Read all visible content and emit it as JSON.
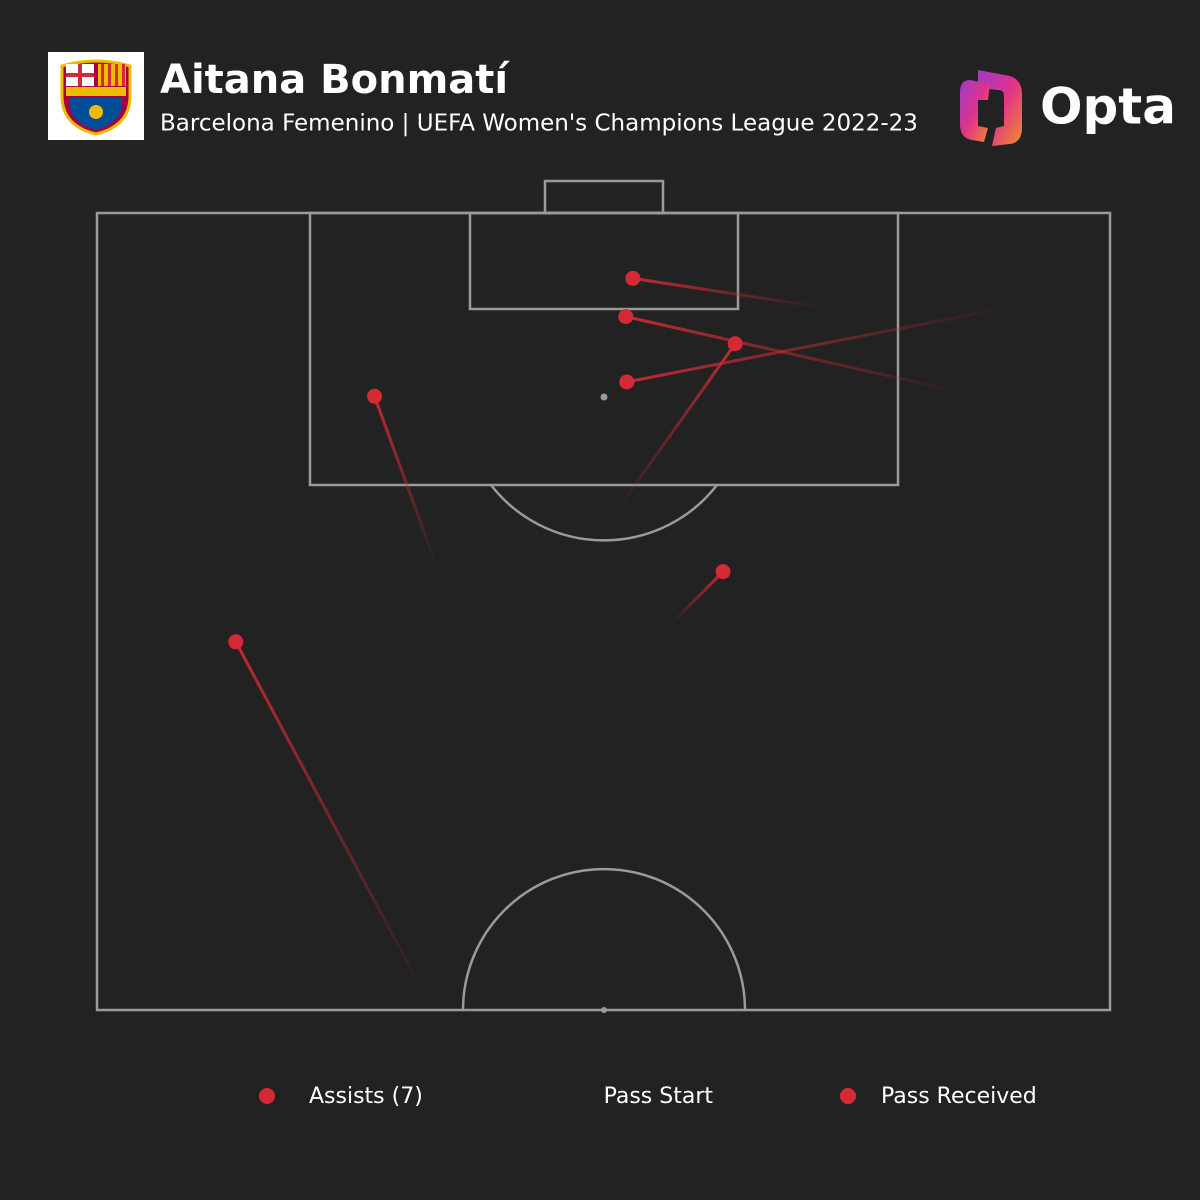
{
  "chart_data": {
    "type": "pass-map",
    "title": "Aitana Bonmatí",
    "subtitle": "Barcelona Femenino | UEFA Women's Champions League 2022-23",
    "brand": "Opta",
    "color": "#d42a35",
    "legend": {
      "assists": "Assists (7)",
      "start": "Pass Start",
      "received": "Pass Received"
    },
    "passes": [
      {
        "start_x": 94.1,
        "start_y": 71.4,
        "end_x": 95.9,
        "end_y": 52.9
      },
      {
        "start_x": 88.7,
        "start_y": 85.7,
        "end_x": 93.5,
        "end_y": 52.2
      },
      {
        "start_x": 81.4,
        "start_y": 51.4,
        "end_x": 91.8,
        "end_y": 63.0
      },
      {
        "start_x": 94.1,
        "start_y": 90.1,
        "end_x": 89.4,
        "end_y": 52.3
      },
      {
        "start_x": 77.7,
        "start_y": 33.6,
        "end_x": 88.5,
        "end_y": 27.4
      },
      {
        "start_x": 74.3,
        "start_y": 56.8,
        "end_x": 77.5,
        "end_y": 61.8
      },
      {
        "start_x": 50.9,
        "start_y": 32.4,
        "end_x": 73.1,
        "end_y": 13.7
      }
    ]
  }
}
